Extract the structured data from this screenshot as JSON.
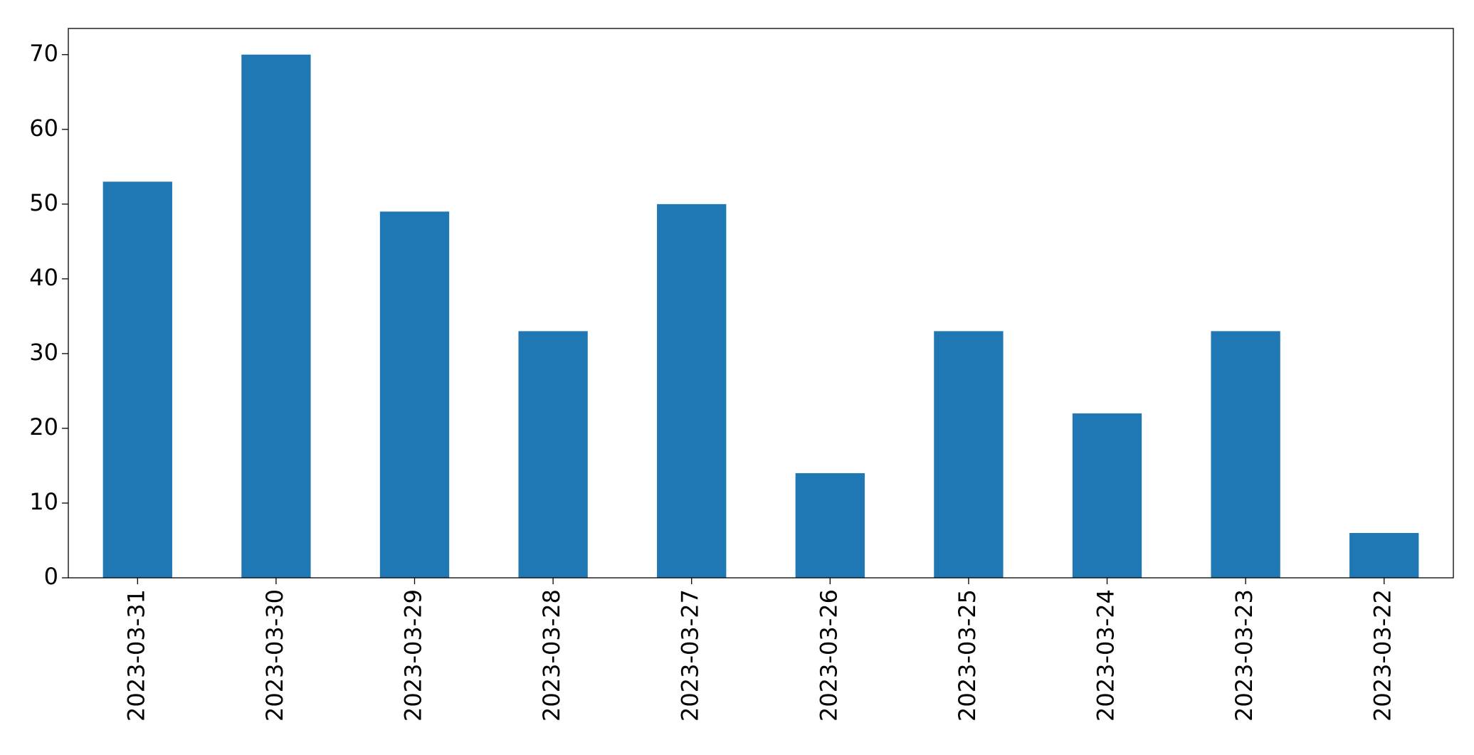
{
  "chart_data": {
    "type": "bar",
    "categories": [
      "2023-03-31",
      "2023-03-30",
      "2023-03-29",
      "2023-03-28",
      "2023-03-27",
      "2023-03-26",
      "2023-03-25",
      "2023-03-24",
      "2023-03-23",
      "2023-03-22"
    ],
    "values": [
      53,
      70,
      49,
      33,
      50,
      14,
      33,
      22,
      33,
      6
    ],
    "color": "#1f77b4",
    "ylim": [
      0,
      73.5
    ],
    "yticks": [
      0,
      10,
      20,
      30,
      40,
      50,
      60,
      70
    ],
    "grid": false
  }
}
